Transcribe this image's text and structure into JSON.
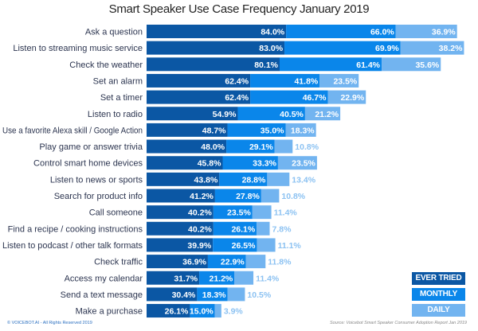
{
  "chart_data": {
    "type": "bar",
    "orientation": "horizontal",
    "stacked": true,
    "title": "Smart Speaker Use Case Frequency January 2019",
    "categories": [
      "Ask a question",
      "Listen to streaming music service",
      "Check the weather",
      "Set an alarm",
      "Set a timer",
      "Listen to radio",
      "Use a favorite Alexa skill / Google Action",
      "Play game or answer trivia",
      "Control smart home devices",
      "Listen to news or sports",
      "Search for product info",
      "Call someone",
      "Find a recipe / cooking instructions",
      "Listen to podcast / other talk formats",
      "Check traffic",
      "Access my calendar",
      "Send a text message",
      "Make a purchase"
    ],
    "series": [
      {
        "name": "EVER TRIED",
        "color": "#0b57a4",
        "values": [
          84.0,
          83.0,
          80.1,
          62.4,
          62.4,
          54.9,
          48.7,
          48.0,
          45.8,
          43.8,
          41.2,
          40.2,
          40.2,
          39.9,
          36.9,
          31.7,
          30.4,
          26.1
        ]
      },
      {
        "name": "MONTHLY",
        "color": "#0a86ea",
        "values": [
          66.0,
          69.9,
          61.4,
          41.8,
          46.7,
          40.5,
          35.0,
          29.1,
          33.3,
          28.8,
          27.8,
          23.5,
          26.1,
          26.5,
          22.9,
          21.2,
          18.3,
          15.0
        ]
      },
      {
        "name": "DAILY",
        "color": "#72b4f0",
        "values": [
          36.9,
          38.2,
          35.6,
          23.5,
          22.9,
          21.2,
          18.3,
          10.8,
          23.5,
          13.4,
          10.8,
          11.4,
          7.8,
          11.1,
          11.8,
          11.4,
          10.5,
          3.9
        ]
      }
    ],
    "value_suffix": "%",
    "legend": "bottom-right",
    "grid": false
  },
  "footer": {
    "copyright": "© VOICEBOT.AI - All Rights Reserved 2019",
    "source": "Source: Voicebot Smart Speaker Consumer Adoption Report Jan 2019"
  }
}
